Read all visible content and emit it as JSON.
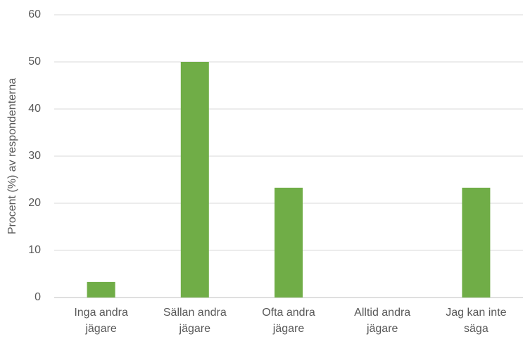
{
  "chart_data": {
    "type": "bar",
    "y_label": "Procent (%) av respondenterna",
    "categories": [
      "Inga andra jägare",
      "Sällan andra jägare",
      "Ofta andra jägare",
      "Alltid andra jägare",
      "Jag kan inte säga"
    ],
    "values": [
      3.3,
      50,
      23.3,
      0,
      23.3
    ],
    "color": "#70ad47",
    "ylim": [
      0,
      60
    ],
    "yticks": [
      0,
      10,
      20,
      30,
      40,
      50,
      60
    ],
    "grid": true
  }
}
